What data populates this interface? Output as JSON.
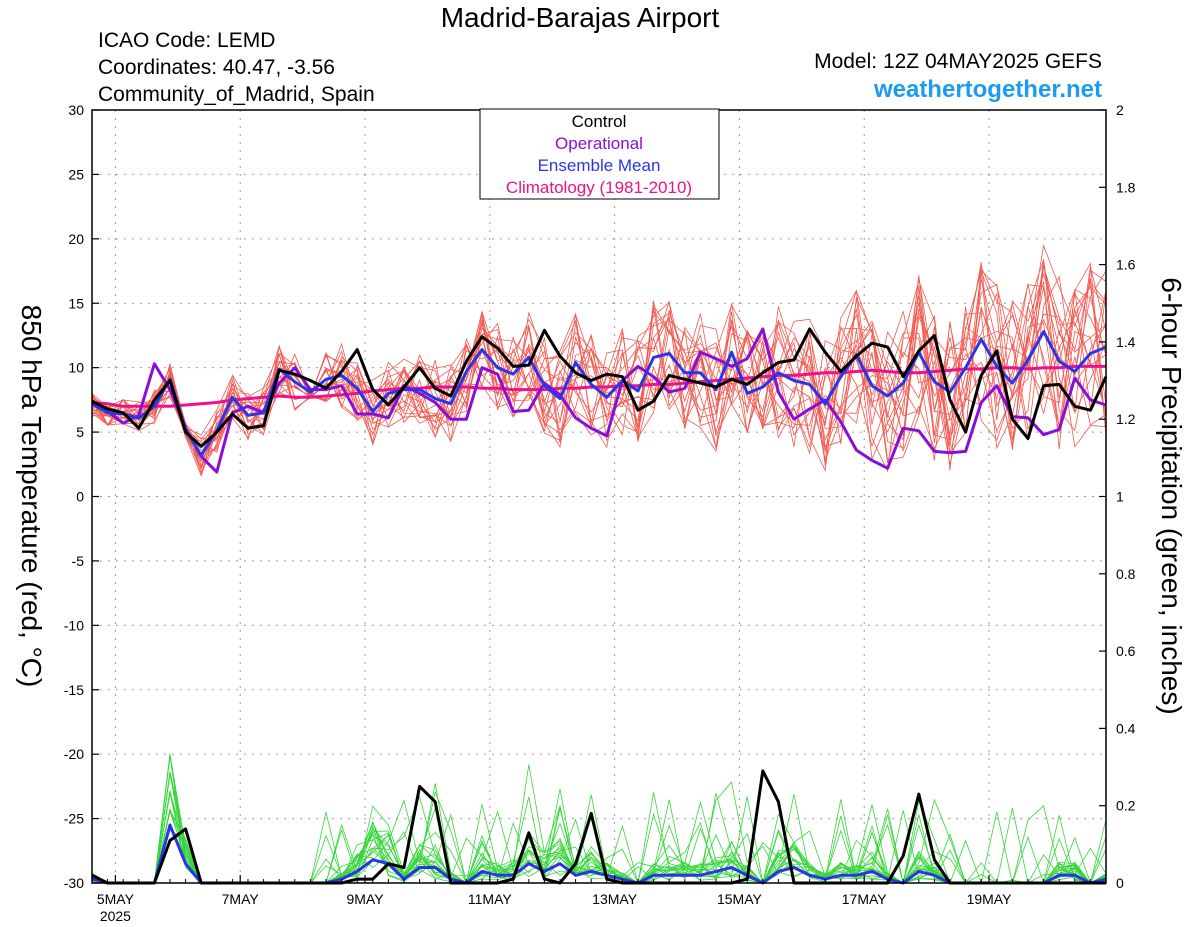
{
  "header": {
    "title": "Madrid-Barajas Airport",
    "icao": "ICAO Code: LEMD",
    "coords": "Coordinates: 40.47, -3.56",
    "region": "Community_of_Madrid, Spain",
    "model": "Model: 12Z 04MAY2025 GEFS",
    "site": "weathertogether.net"
  },
  "legend": {
    "control": "Control",
    "operational": "Operational",
    "mean": "Ensemble Mean",
    "climo": "Climatology (1981-2010)"
  },
  "colors": {
    "control": "#000000",
    "operational": "#8a0fd6",
    "mean": "#2a35e8",
    "climo": "#ec118c",
    "members_temp": "#f25a50",
    "members_precip": "#35d63a",
    "site": "#1c9cf0"
  },
  "chart_data": {
    "type": "line",
    "ylabel_left": "850 hPa Temperature (red, °C)",
    "ylabel_right": "6-hour Precipitation (green, inches)",
    "left_ylim": [
      -30,
      30
    ],
    "right_ylim": [
      0,
      2
    ],
    "left_ticks": [
      "30",
      "25",
      "20",
      "15",
      "10",
      "5",
      "0",
      "-5",
      "-10",
      "-15",
      "-20",
      "-25",
      "-30"
    ],
    "right_ticks": [
      "2",
      "1.8",
      "1.6",
      "1.4",
      "1.2",
      "1",
      "0.8",
      "0.6",
      "0.4",
      "0.2",
      "0"
    ],
    "x_ticks": [
      {
        "label": "5MAY",
        "sub": "2025",
        "t": 1.5
      },
      {
        "label": "7MAY",
        "sub": "",
        "t": 9.5
      },
      {
        "label": "9MAY",
        "sub": "",
        "t": 17.5
      },
      {
        "label": "11MAY",
        "sub": "",
        "t": 25.5
      },
      {
        "label": "13MAY",
        "sub": "",
        "t": 33.5
      },
      {
        "label": "15MAY",
        "sub": "",
        "t": 41.5
      },
      {
        "label": "17MAY",
        "sub": "",
        "t": 49.5
      },
      {
        "label": "19MAY",
        "sub": "",
        "t": 57.5
      }
    ],
    "grid": true,
    "legend_position": "top-center",
    "series": [
      {
        "name": "Control",
        "color": "#000000",
        "temp": [
          7.4,
          6.8,
          6.5,
          5.3,
          7.5,
          9.0,
          5.0,
          3.9,
          5.0,
          6.4,
          5.3,
          5.5,
          9.8,
          9.5,
          9.0,
          8.4,
          9.7,
          11.4,
          8.3,
          7.1,
          8.5,
          10.0,
          8.4,
          7.8,
          10.5,
          12.4,
          11.5,
          10.1,
          10.2,
          12.9,
          10.9,
          9.6,
          9.0,
          9.5,
          9.3,
          6.7,
          7.4,
          9.4,
          9.1,
          8.8,
          8.5,
          9.1,
          8.7,
          9.6,
          10.4,
          10.6,
          13.0,
          11.2,
          9.7,
          10.9,
          11.9,
          11.6,
          9.3,
          11.3,
          12.5,
          7.5,
          5.0,
          9.4,
          11.3,
          6.0,
          4.5,
          8.6,
          8.7,
          7.0,
          6.7,
          9.3
        ],
        "precip": [
          0.02,
          0.0,
          0.0,
          0.0,
          0.0,
          0.11,
          0.14,
          0.0,
          0.0,
          0.0,
          0.0,
          0.0,
          0.0,
          0.0,
          0.0,
          0.0,
          0.0,
          0.01,
          0.01,
          0.05,
          0.04,
          0.25,
          0.21,
          0.0,
          0.0,
          0.0,
          0.0,
          0.01,
          0.13,
          0.01,
          0.0,
          0.05,
          0.18,
          0.01,
          0.0,
          0.0,
          0.0,
          0.0,
          0.0,
          0.0,
          0.0,
          0.0,
          0.01,
          0.29,
          0.21,
          0.0,
          0.0,
          0.0,
          0.0,
          0.0,
          0.0,
          0.0,
          0.07,
          0.23,
          0.06,
          0.0,
          0.0,
          0.0,
          0.0,
          0.0,
          0.0,
          0.0,
          0.0,
          0.0,
          0.0,
          0.0
        ]
      },
      {
        "name": "Operational",
        "color": "#8a0fd6",
        "temp": [
          7.3,
          6.6,
          5.7,
          6.3,
          10.3,
          8.3,
          5.3,
          3.1,
          1.9,
          6.5,
          7.0,
          6.5,
          8.8,
          10.0,
          8.3,
          8.3,
          8.6,
          6.4,
          6.4,
          6.1,
          8.6,
          8.0,
          7.3,
          6.0,
          6.0,
          10.0,
          9.5,
          6.6,
          6.7,
          8.8,
          7.9,
          6.1,
          5.3,
          4.7,
          9.0,
          10.1,
          9.3,
          8.1,
          8.4,
          11.2,
          10.7,
          10.1,
          10.7,
          13.0,
          8.1,
          6.0,
          6.8,
          7.5,
          5.8,
          3.6,
          2.8,
          2.2,
          5.3,
          5.1,
          3.5,
          3.4,
          3.5,
          7.3,
          8.6,
          6.2,
          6.1,
          4.8,
          5.2,
          9.2,
          7.5,
          7.1
        ],
        "precip": []
      },
      {
        "name": "Ensemble Mean",
        "color": "#2a35e8",
        "temp": [
          7.2,
          6.5,
          6.4,
          6.1,
          7.0,
          9.1,
          5.2,
          3.2,
          5.1,
          7.7,
          6.3,
          6.5,
          9.9,
          8.9,
          8.1,
          9.1,
          9.4,
          8.4,
          6.6,
          8.0,
          8.3,
          8.3,
          7.6,
          7.2,
          9.7,
          11.4,
          10.0,
          9.5,
          10.8,
          8.6,
          7.6,
          10.4,
          8.7,
          7.7,
          9.0,
          8.2,
          10.8,
          11.1,
          9.6,
          9.6,
          8.3,
          11.2,
          8.0,
          8.5,
          9.6,
          9.0,
          8.7,
          7.2,
          9.3,
          11.0,
          8.6,
          7.8,
          8.8,
          11.2,
          8.9,
          8.1,
          10.0,
          12.2,
          10.1,
          8.8,
          10.6,
          12.8,
          10.5,
          9.7,
          11.1,
          11.6
        ],
        "precip": [
          0.01,
          0.0,
          0.0,
          0.0,
          0.0,
          0.15,
          0.05,
          0.0,
          0.0,
          0.0,
          0.0,
          0.0,
          0.0,
          0.0,
          0.0,
          0.0,
          0.01,
          0.03,
          0.06,
          0.05,
          0.01,
          0.04,
          0.04,
          0.01,
          0.0,
          0.03,
          0.02,
          0.02,
          0.05,
          0.03,
          0.05,
          0.02,
          0.03,
          0.02,
          0.01,
          0.0,
          0.02,
          0.02,
          0.02,
          0.02,
          0.03,
          0.04,
          0.02,
          0.0,
          0.03,
          0.04,
          0.02,
          0.01,
          0.02,
          0.02,
          0.03,
          0.01,
          0.0,
          0.03,
          0.02,
          0.0,
          0.0,
          0.0,
          0.0,
          0.0,
          0.0,
          0.0,
          0.02,
          0.02,
          0.0,
          0.01
        ]
      },
      {
        "name": "Climatology (1981-2010)",
        "color": "#ec118c",
        "temp": [
          7.3,
          7.2,
          7.0,
          7.0,
          7.0,
          7.0,
          7.1,
          7.2,
          7.3,
          7.5,
          7.6,
          7.7,
          7.8,
          7.7,
          7.7,
          7.8,
          7.9,
          8.0,
          8.2,
          8.3,
          8.4,
          8.4,
          8.5,
          8.5,
          8.5,
          8.4,
          8.4,
          8.3,
          8.3,
          8.3,
          8.4,
          8.4,
          8.5,
          8.5,
          8.6,
          8.6,
          8.7,
          8.7,
          8.8,
          8.9,
          9.0,
          9.1,
          9.2,
          9.3,
          9.4,
          9.4,
          9.5,
          9.6,
          9.6,
          9.7,
          9.8,
          9.7,
          9.6,
          9.6,
          9.7,
          9.8,
          9.9,
          9.9,
          10.0,
          10.0,
          9.9,
          10.0,
          10.0,
          10.1,
          10.1,
          10.1
        ],
        "precip": []
      }
    ]
  }
}
